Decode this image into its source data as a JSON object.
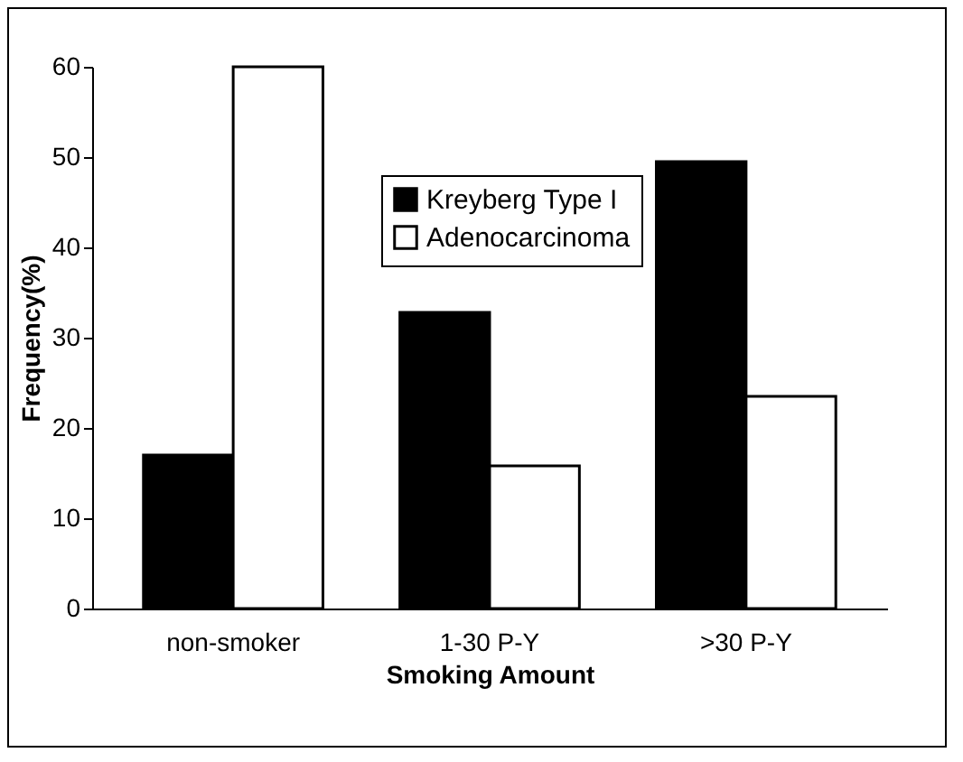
{
  "chart_data": {
    "type": "bar",
    "xlabel": "Smoking Amount",
    "ylabel": "Frequency(%)",
    "categories": [
      "non-smoker",
      "1-30 P-Y",
      ">30 P-Y"
    ],
    "series": [
      {
        "name": "Kreyberg Type I",
        "color": "#000000",
        "values": [
          17,
          32.8,
          49.5
        ]
      },
      {
        "name": "Adenocarcinoma",
        "color": "#ffffff",
        "values": [
          60,
          15.8,
          23.5
        ]
      }
    ],
    "ylim": [
      0,
      60
    ],
    "yticks": [
      0,
      10,
      20,
      30,
      40,
      50,
      60
    ],
    "grid": false,
    "legend": "top right"
  }
}
